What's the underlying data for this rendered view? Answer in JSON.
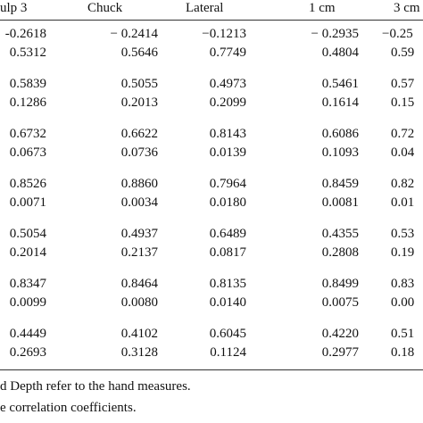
{
  "table": {
    "headers": [
      "ulp 3",
      "Chuck",
      "Lateral",
      "1 cm",
      "3 cm"
    ],
    "rows": [
      [
        "-0.2618",
        "− 0.2414",
        "−0.1213",
        "− 0.2935",
        "−0.25"
      ],
      [
        "0.5312",
        "0.5646",
        "0.7749",
        "0.4804",
        "0.59"
      ],
      [
        "0.5839",
        "0.5055",
        "0.4973",
        "0.5461",
        "0.57"
      ],
      [
        "0.1286",
        "0.2013",
        "0.2099",
        "0.1614",
        "0.15"
      ],
      [
        "0.6732",
        "0.6622",
        "0.8143",
        "0.6086",
        "0.72"
      ],
      [
        "0.0673",
        "0.0736",
        "0.0139",
        "0.1093",
        "0.04"
      ],
      [
        "0.8526",
        "0.8860",
        "0.7964",
        "0.8459",
        "0.82"
      ],
      [
        "0.0071",
        "0.0034",
        "0.0180",
        "0.0081",
        "0.01"
      ],
      [
        "0.5054",
        "0.4937",
        "0.6489",
        "0.4355",
        "0.53"
      ],
      [
        "0.2014",
        "0.2137",
        "0.0817",
        "0.2808",
        "0.19"
      ],
      [
        "0.8347",
        "0.8464",
        "0.8135",
        "0.8499",
        "0.83"
      ],
      [
        "0.0099",
        "0.0080",
        "0.0140",
        "0.0075",
        "0.00"
      ],
      [
        "0.4449",
        "0.4102",
        "0.6045",
        "0.4220",
        "0.51"
      ],
      [
        "0.2693",
        "0.3128",
        "0.1124",
        "0.2977",
        "0.18"
      ]
    ]
  },
  "footnotes": [
    "d Depth refer to the hand measures.",
    "e correlation coefficients."
  ]
}
